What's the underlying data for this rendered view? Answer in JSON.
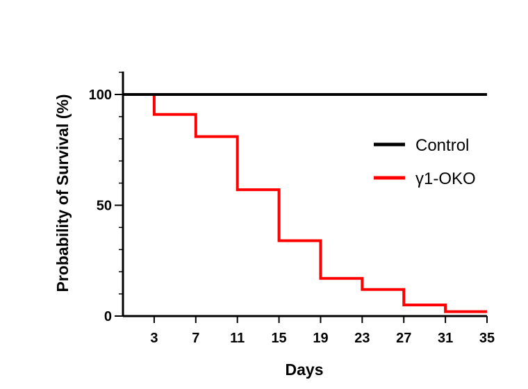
{
  "chart_data": {
    "type": "line",
    "step": true,
    "title": "",
    "xlabel": "Days",
    "ylabel": "Probability of Survival (%)",
    "xlim": [
      0,
      35
    ],
    "ylim": [
      0,
      100
    ],
    "xticks": [
      3,
      7,
      11,
      15,
      19,
      23,
      27,
      31,
      35
    ],
    "yticks": [
      0,
      50,
      100
    ],
    "grid": false,
    "legend_position": "right",
    "series": [
      {
        "name": "Control",
        "color": "#000000",
        "x": [
          3,
          35
        ],
        "y": [
          100,
          100
        ]
      },
      {
        "name": "γ1-OKO",
        "color": "#ff0000",
        "x": [
          3,
          7,
          11,
          15,
          19,
          23,
          27,
          31,
          35
        ],
        "y": [
          91,
          81,
          57,
          34,
          17,
          12,
          5,
          2,
          2
        ]
      }
    ]
  }
}
